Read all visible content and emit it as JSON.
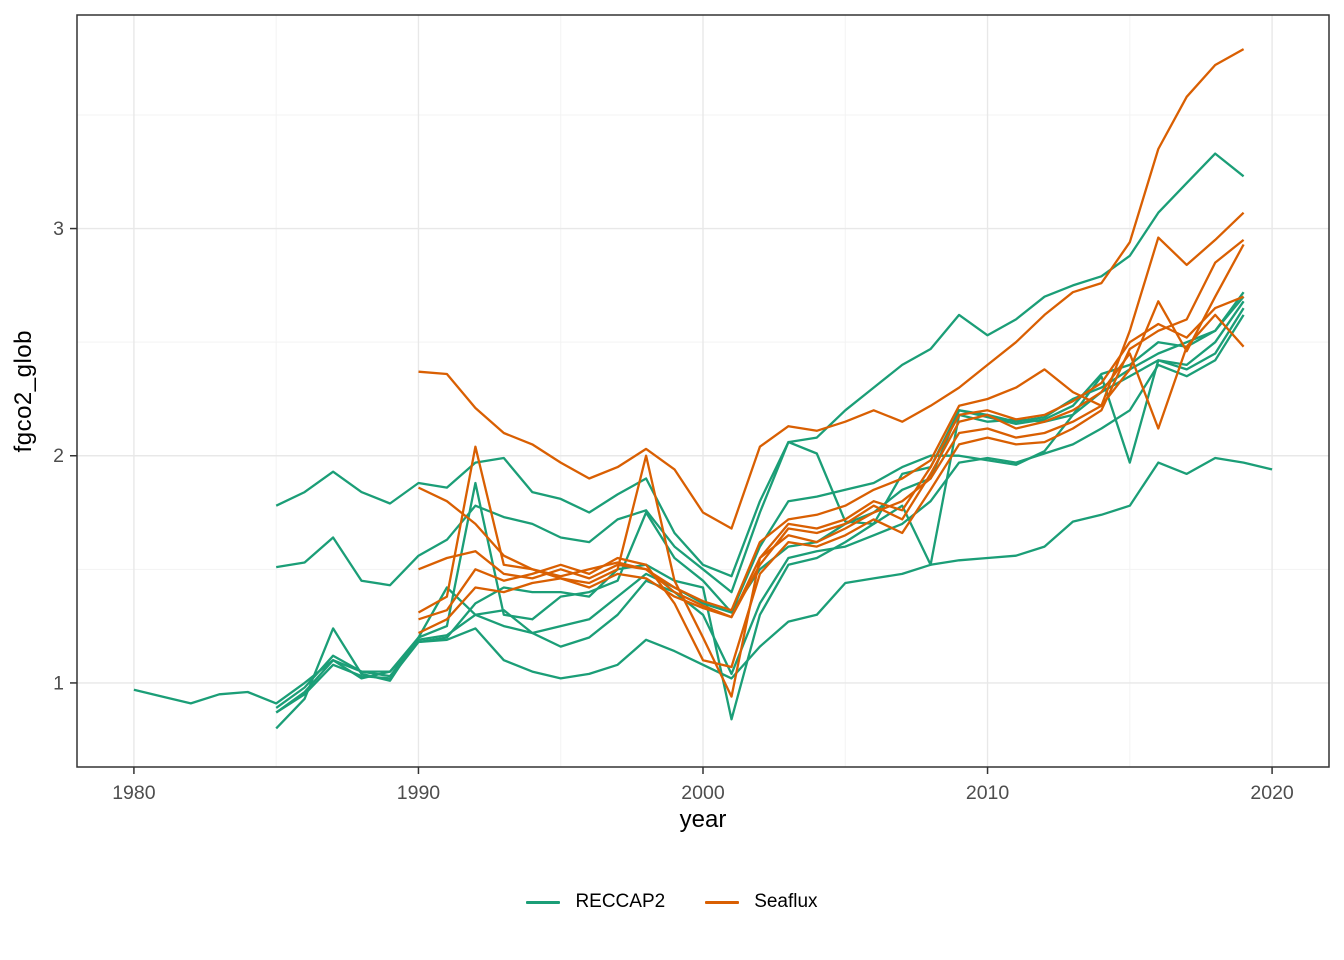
{
  "chart_data": {
    "type": "line",
    "title": "",
    "xlabel": "year",
    "ylabel": "fgco2_glob",
    "xlim": [
      1978,
      2022
    ],
    "ylim": [
      0.63,
      3.94
    ],
    "x_ticks": [
      1980,
      1990,
      2000,
      2010,
      2020
    ],
    "x_minor": [
      1985,
      1995,
      2005,
      2015
    ],
    "y_ticks": [
      1,
      2,
      3
    ],
    "y_minor": [
      1.5,
      2.5,
      3.5
    ],
    "grid": true,
    "legend_position": "bottom",
    "colors": {
      "RECCAP2": "#1b9e77",
      "Seaflux": "#d95f02",
      "grid_major": "#e8e8e8",
      "grid_minor": "#f3f3f3",
      "panel_border": "#333333",
      "tick": "#333333",
      "tick_label": "#4d4d4d",
      "axis_title": "#000000",
      "background": "#ffffff"
    },
    "legend": [
      {
        "label": "RECCAP2",
        "group": "RECCAP2"
      },
      {
        "label": "Seaflux",
        "group": "Seaflux"
      }
    ],
    "series": [
      {
        "name": "reccap2-1",
        "group": "RECCAP2",
        "start_year": 1980,
        "values": [
          0.97,
          0.94,
          0.91,
          0.95,
          0.96,
          0.91,
          1.0,
          1.1,
          1.02,
          1.05,
          1.18,
          1.19,
          1.24,
          1.1,
          1.05,
          1.02,
          1.04,
          1.08,
          1.19,
          1.14,
          1.08,
          1.02,
          1.16,
          1.27,
          1.3,
          1.44,
          1.46,
          1.48,
          1.52,
          1.54,
          1.55,
          1.56,
          1.6,
          1.71,
          1.74,
          1.78,
          1.97,
          1.92,
          1.99,
          1.97,
          1.94
        ]
      },
      {
        "name": "reccap2-2",
        "group": "RECCAP2",
        "start_year": 1985,
        "values": [
          1.78,
          1.84,
          1.93,
          1.84,
          1.79,
          1.88,
          1.86,
          1.97,
          1.99,
          1.84,
          1.81,
          1.75,
          1.83,
          1.9,
          1.66,
          1.52,
          1.47,
          1.8,
          2.06,
          2.08,
          2.2,
          2.3,
          2.4,
          2.47,
          2.62,
          2.53,
          2.6,
          2.7,
          2.75,
          2.79,
          2.88,
          3.07,
          3.2,
          3.33,
          3.23
        ]
      },
      {
        "name": "reccap2-3",
        "group": "RECCAP2",
        "start_year": 1985,
        "values": [
          1.51,
          1.53,
          1.64,
          1.45,
          1.43,
          1.56,
          1.63,
          1.78,
          1.73,
          1.7,
          1.64,
          1.62,
          1.72,
          1.76,
          1.6,
          1.5,
          1.4,
          1.75,
          2.06,
          2.01,
          1.71,
          1.7,
          1.92,
          1.95,
          2.2,
          2.17,
          2.14,
          2.16,
          2.22,
          2.36,
          2.4,
          2.5,
          2.48,
          2.55,
          2.72
        ]
      },
      {
        "name": "reccap2-4",
        "group": "RECCAP2",
        "start_year": 1985,
        "values": [
          0.89,
          0.98,
          1.12,
          1.05,
          1.05,
          1.2,
          1.25,
          1.88,
          1.3,
          1.28,
          1.38,
          1.4,
          1.45,
          1.75,
          1.55,
          1.45,
          1.31,
          1.6,
          1.8,
          1.82,
          1.85,
          1.88,
          1.95,
          2.0,
          2.0,
          1.98,
          1.96,
          2.02,
          2.18,
          2.35,
          1.97,
          2.42,
          2.38,
          2.45,
          2.65
        ]
      },
      {
        "name": "reccap2-5",
        "group": "RECCAP2",
        "start_year": 1985,
        "values": [
          0.87,
          0.95,
          1.08,
          1.03,
          1.02,
          1.18,
          1.2,
          1.35,
          1.42,
          1.4,
          1.4,
          1.38,
          1.5,
          1.52,
          1.45,
          1.42,
          0.84,
          1.3,
          1.52,
          1.55,
          1.62,
          1.7,
          1.78,
          1.52,
          2.18,
          2.15,
          2.16,
          2.15,
          2.18,
          2.28,
          2.35,
          2.42,
          2.4,
          2.5,
          2.68
        ]
      },
      {
        "name": "reccap2-6",
        "group": "RECCAP2",
        "start_year": 1985,
        "values": [
          0.8,
          0.93,
          1.24,
          1.04,
          1.01,
          1.2,
          1.42,
          1.3,
          1.32,
          1.22,
          1.16,
          1.2,
          1.3,
          1.45,
          1.4,
          1.3,
          1.04,
          1.35,
          1.55,
          1.58,
          1.6,
          1.65,
          1.7,
          1.8,
          1.97,
          1.99,
          1.97,
          2.01,
          2.05,
          2.12,
          2.2,
          2.4,
          2.35,
          2.42,
          2.62
        ]
      },
      {
        "name": "reccap2-7",
        "group": "RECCAP2",
        "start_year": 1985,
        "values": [
          0.87,
          0.96,
          1.1,
          1.05,
          1.03,
          1.19,
          1.21,
          1.3,
          1.25,
          1.22,
          1.25,
          1.28,
          1.38,
          1.48,
          1.42,
          1.35,
          1.31,
          1.5,
          1.6,
          1.62,
          1.7,
          1.75,
          1.85,
          1.9,
          2.2,
          2.18,
          2.15,
          2.17,
          2.25,
          2.3,
          2.38,
          2.45,
          2.5,
          2.55,
          2.7
        ]
      },
      {
        "name": "seaflux-1",
        "group": "Seaflux",
        "start_year": 1990,
        "values": [
          2.37,
          2.36,
          2.21,
          2.1,
          2.05,
          1.97,
          1.9,
          1.95,
          2.03,
          1.94,
          1.75,
          1.68,
          2.04,
          2.13,
          2.11,
          2.15,
          2.2,
          2.15,
          2.22,
          2.3,
          2.4,
          2.5,
          2.62,
          2.72,
          2.76,
          2.94,
          3.35,
          3.58,
          3.72,
          3.79
        ]
      },
      {
        "name": "seaflux-2",
        "group": "Seaflux",
        "start_year": 1990,
        "values": [
          1.86,
          1.8,
          1.7,
          1.56,
          1.5,
          1.47,
          1.5,
          1.53,
          1.5,
          1.42,
          1.36,
          1.32,
          1.62,
          1.72,
          1.74,
          1.78,
          1.85,
          1.9,
          1.98,
          2.22,
          2.25,
          2.3,
          2.38,
          2.28,
          2.22,
          2.55,
          2.96,
          2.84,
          2.95,
          3.07
        ]
      },
      {
        "name": "seaflux-3",
        "group": "Seaflux",
        "start_year": 1990,
        "values": [
          1.31,
          1.38,
          2.04,
          1.52,
          1.5,
          1.46,
          1.44,
          1.5,
          2.0,
          1.45,
          1.2,
          0.94,
          1.55,
          1.65,
          1.62,
          1.68,
          1.75,
          1.8,
          1.9,
          2.1,
          2.12,
          2.08,
          2.1,
          2.15,
          2.22,
          2.38,
          2.68,
          2.46,
          2.7,
          2.93
        ]
      },
      {
        "name": "seaflux-4",
        "group": "Seaflux",
        "start_year": 1990,
        "values": [
          1.28,
          1.32,
          1.5,
          1.45,
          1.48,
          1.52,
          1.48,
          1.55,
          1.52,
          1.35,
          1.1,
          1.07,
          1.48,
          1.62,
          1.6,
          1.65,
          1.72,
          1.66,
          1.85,
          2.05,
          2.08,
          2.05,
          2.06,
          2.12,
          2.2,
          2.47,
          2.55,
          2.6,
          2.85,
          2.95
        ]
      },
      {
        "name": "seaflux-5",
        "group": "Seaflux",
        "start_year": 1990,
        "values": [
          1.22,
          1.28,
          1.42,
          1.4,
          1.44,
          1.46,
          1.42,
          1.48,
          1.46,
          1.38,
          1.33,
          1.29,
          1.52,
          1.68,
          1.66,
          1.7,
          1.78,
          1.72,
          1.92,
          2.15,
          2.18,
          2.12,
          2.15,
          2.2,
          2.28,
          2.45,
          2.12,
          2.48,
          2.62,
          2.48
        ]
      },
      {
        "name": "seaflux-6",
        "group": "Seaflux",
        "start_year": 1990,
        "values": [
          1.5,
          1.55,
          1.58,
          1.48,
          1.46,
          1.5,
          1.46,
          1.52,
          1.5,
          1.4,
          1.34,
          1.29,
          1.55,
          1.7,
          1.68,
          1.72,
          1.8,
          1.76,
          1.95,
          2.18,
          2.2,
          2.16,
          2.18,
          2.24,
          2.32,
          2.5,
          2.58,
          2.52,
          2.65,
          2.7
        ]
      }
    ]
  }
}
